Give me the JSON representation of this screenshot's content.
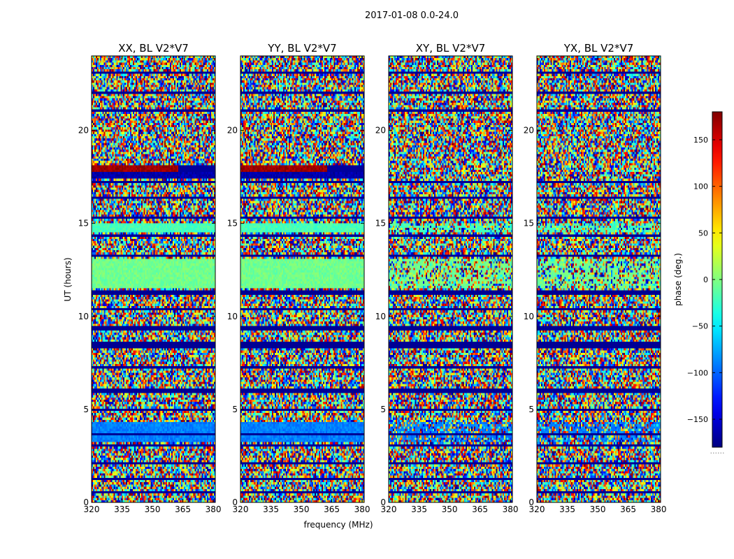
{
  "chart_data": {
    "type": "heatmap",
    "title": "2017-01-08 0.0-24.0",
    "xlabel": "frequency (MHz)",
    "ylabel": "UT (hours)",
    "xlim": [
      320,
      381
    ],
    "ylim": [
      0,
      24
    ],
    "xticks": [
      320,
      335,
      350,
      365,
      380
    ],
    "yticks": [
      0,
      5,
      10,
      15,
      20
    ],
    "colormap": "jet",
    "colorbar": {
      "label": "phase (deg.)",
      "range": [
        -180,
        180
      ],
      "ticks": [
        150,
        100,
        50,
        0,
        -50,
        -100,
        -150
      ],
      "tick_labels": [
        "150",
        "100",
        "50",
        "0",
        "−50",
        "−100",
        "−150"
      ],
      "footer": "......"
    },
    "panels": [
      {
        "name": "XX",
        "title": "XX, BL V2*V7"
      },
      {
        "name": "YY",
        "title": "YY, BL V2*V7"
      },
      {
        "name": "XY",
        "title": "XY, BL V2*V7"
      },
      {
        "name": "YX",
        "title": "YX, BL V2*V7"
      }
    ],
    "flagged_ut_bands": [
      [
        0.45,
        0.55
      ],
      [
        1.2,
        1.3
      ],
      [
        2.05,
        2.15
      ],
      [
        3.0,
        3.1
      ],
      [
        3.6,
        3.7
      ],
      [
        4.9,
        5.0
      ],
      [
        5.9,
        6.1
      ],
      [
        7.2,
        7.3
      ],
      [
        8.3,
        8.6
      ],
      [
        9.3,
        9.5
      ],
      [
        10.3,
        10.4
      ],
      [
        11.2,
        11.4
      ],
      [
        13.2,
        13.3
      ],
      [
        14.3,
        14.4
      ],
      [
        15.3,
        15.4
      ],
      [
        16.3,
        16.4
      ],
      [
        17.2,
        17.3
      ],
      [
        21.0,
        21.1
      ],
      [
        22.0,
        22.1
      ],
      [
        23.0,
        23.1
      ]
    ],
    "coherent_ut_bands": [
      {
        "ut": [
          14.5,
          15.0
        ],
        "phase_deg": -20
      },
      {
        "ut": [
          11.5,
          13.1
        ],
        "phase_deg": -5
      },
      {
        "ut": [
          3.3,
          4.3
        ],
        "phase_deg": -90
      },
      {
        "ut": [
          17.8,
          18.1
        ],
        "phase_deg": 170
      },
      {
        "ut": [
          17.4,
          17.8
        ],
        "phase_deg": -165
      }
    ]
  }
}
